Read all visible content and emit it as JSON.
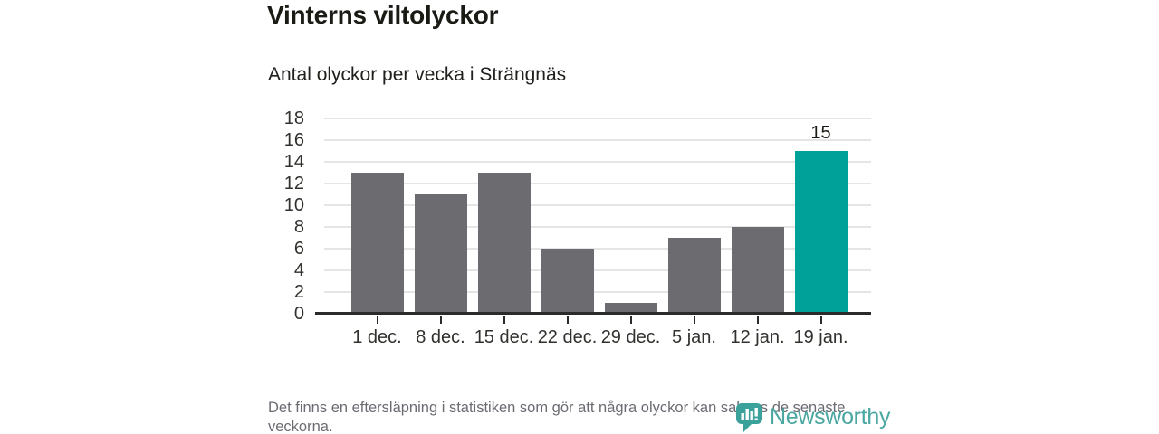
{
  "chart": {
    "title": "Vinterns viltolyckor",
    "subtitle": "Antal olyckor per vecka i Strängnäs"
  },
  "chart_data": {
    "type": "bar",
    "categories": [
      "1 dec.",
      "8 dec.",
      "15 dec.",
      "22 dec.",
      "29 dec.",
      "5 jan.",
      "12 jan.",
      "19 jan."
    ],
    "values": [
      13,
      11,
      13,
      6,
      1,
      7,
      8,
      15
    ],
    "highlight_index": 7,
    "data_labels": {
      "7": "15"
    },
    "title": "Vinterns viltolyckor",
    "subtitle": "Antal olyckor per vecka i Strängnäs",
    "xlabel": "",
    "ylabel": "",
    "ylim": [
      0,
      18
    ],
    "ytick_step": 2,
    "yticks": [
      0,
      2,
      4,
      6,
      8,
      10,
      12,
      14,
      16,
      18
    ],
    "grid": true,
    "legend": "none",
    "colors": {
      "bar": "#6b6b70",
      "highlight": "#00a199",
      "gridline": "#e5e5e5",
      "axis": "#2b2b2b"
    }
  },
  "footer": {
    "note": "Det finns en eftersläpning i statistiken som gör att några olyckor kan saknas de senaste veckorna.",
    "logo_text": "Newsworthy",
    "logo_color": "#4ba7a1"
  }
}
